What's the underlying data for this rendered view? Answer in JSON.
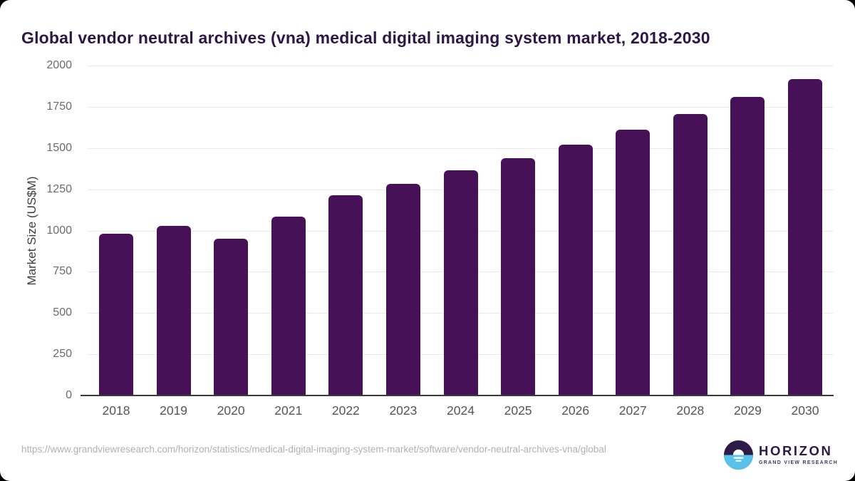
{
  "header": {
    "title": "Global vendor neutral archives (vna) medical digital imaging system market, 2018-2030",
    "title_color": "#2e1645"
  },
  "chart_data": {
    "type": "bar",
    "title": "Global vendor neutral archives (vna) medical digital imaging system market, 2018-2030",
    "categories": [
      "2018",
      "2019",
      "2020",
      "2021",
      "2022",
      "2023",
      "2024",
      "2025",
      "2026",
      "2027",
      "2028",
      "2029",
      "2030"
    ],
    "values": [
      975,
      1025,
      945,
      1080,
      1210,
      1280,
      1360,
      1435,
      1515,
      1605,
      1700,
      1805,
      1915
    ],
    "xlabel": "",
    "ylabel": "Market Size (US$M)",
    "ylim": [
      0,
      2000
    ],
    "yticks": [
      0,
      250,
      500,
      750,
      1000,
      1250,
      1500,
      1750,
      2000
    ],
    "grid": true,
    "legend": false,
    "colors": {
      "bar": "#471158",
      "gridline": "#e9e9eb",
      "baseline": "#3a3a3a",
      "y_tick_text": "#6b6b6b",
      "x_tick_text": "#555555",
      "axis_title_text": "#3d3d3d"
    }
  },
  "footer": {
    "source_url": "https://www.grandviewresearch.com/horizon/statistics/medical-digital-imaging-system-market/software/vendor-neutral-archives-vna/global",
    "logo": {
      "icon": "horizon-sunrise-icon",
      "brand": "HORIZON",
      "sub_brand": "GRAND VIEW RESEARCH",
      "icon_top_color": "#2e1a47",
      "icon_bottom_color": "#59c2ea",
      "brand_color": "#2e1a47"
    }
  }
}
